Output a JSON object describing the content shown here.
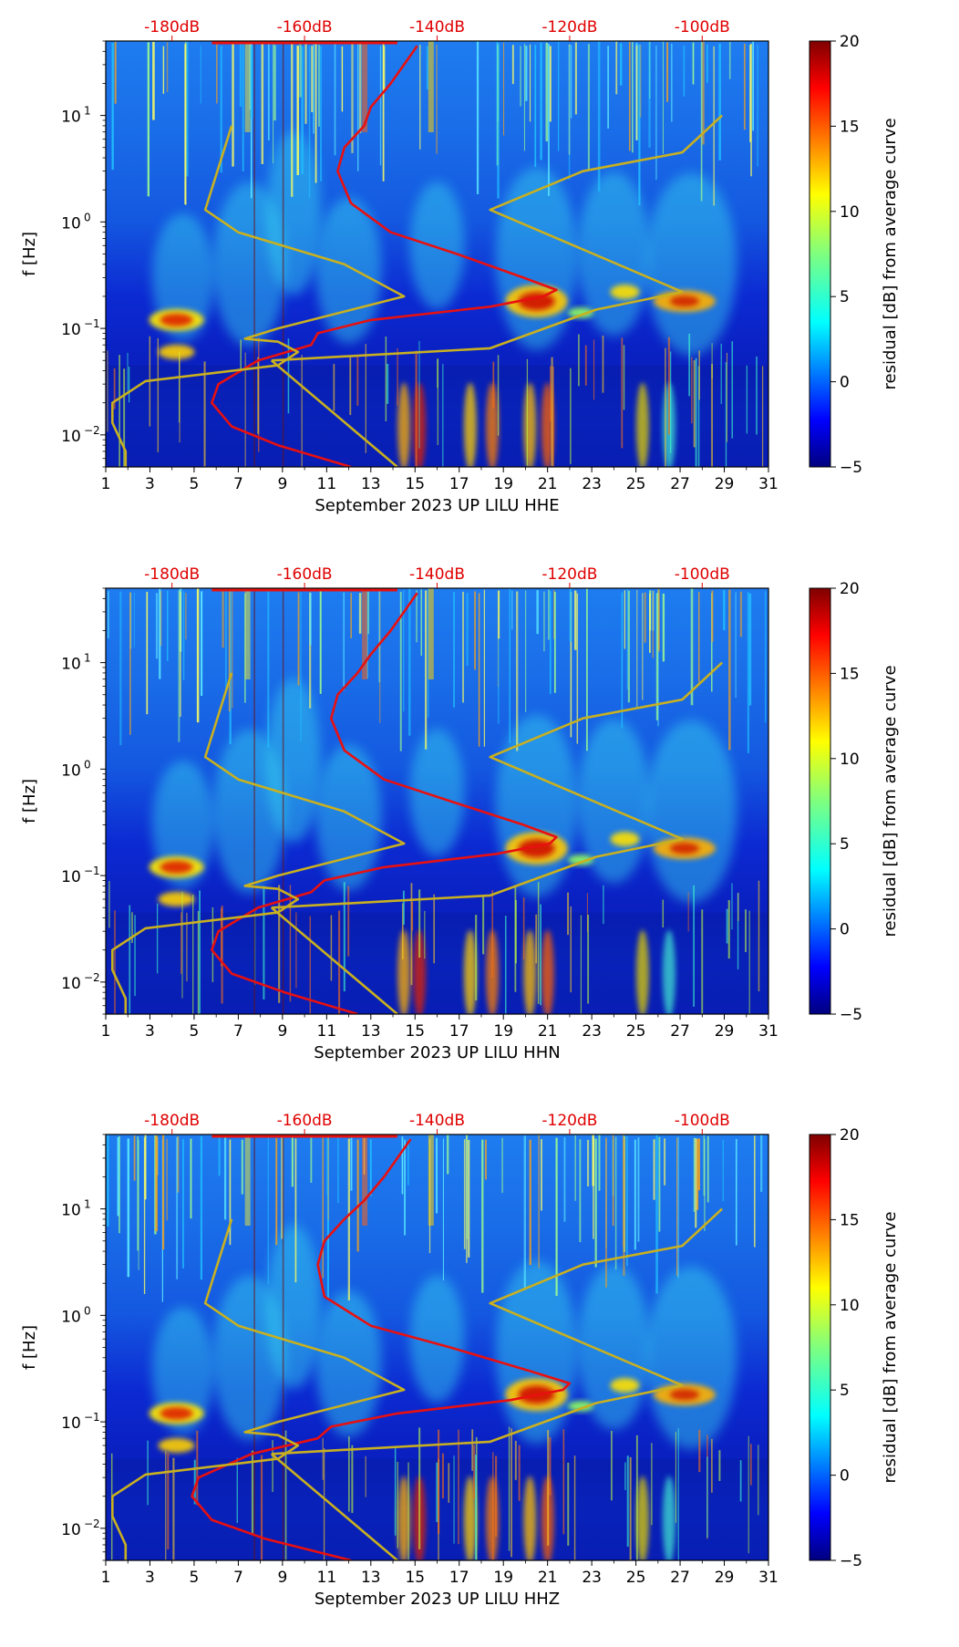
{
  "colors": {
    "red_curve": "#e81010",
    "yellow_curve": "#c8b020",
    "top_axis": "#e00000",
    "colormap": [
      "#00007f",
      "#0000ff",
      "#007fff",
      "#00ffff",
      "#7fff7f",
      "#ffff00",
      "#ff7f00",
      "#ff0000",
      "#7f0000"
    ]
  },
  "chart_data": [
    {
      "type": "heatmap",
      "title": "",
      "xlabel": "September 2023 UP LILU  HHE",
      "ylabel": "f [Hz]",
      "xlim": [
        1,
        31
      ],
      "ylim": [
        0.005,
        50
      ],
      "yscale": "log",
      "x_ticks": [
        "1",
        "3",
        "5",
        "7",
        "9",
        "11",
        "13",
        "15",
        "17",
        "19",
        "21",
        "23",
        "25",
        "27",
        "29",
        "31"
      ],
      "y_ticks": [
        {
          "label": "10",
          "exp": "−2",
          "value": 0.01
        },
        {
          "label": "10",
          "exp": "−1",
          "value": 0.1
        },
        {
          "label": "10",
          "exp": "0",
          "value": 1
        },
        {
          "label": "10",
          "exp": "1",
          "value": 10
        }
      ],
      "top_ticks": [
        "-180dB",
        "-160dB",
        "-140dB",
        "-120dB",
        "-100dB"
      ],
      "top_range_db": [
        -190,
        -90
      ],
      "colorbar": {
        "label": "residual [dB] from average curve",
        "range": [
          -5,
          20
        ],
        "ticks": [
          "−5",
          "0",
          "5",
          "10",
          "15",
          "20"
        ]
      },
      "red_curve": {
        "name": "mean PSD",
        "freq": [
          0.005,
          0.008,
          0.012,
          0.02,
          0.03,
          0.05,
          0.07,
          0.09,
          0.12,
          0.16,
          0.2,
          0.23,
          0.3,
          0.5,
          0.8,
          1.5,
          3,
          5,
          8,
          12,
          20,
          30,
          45
        ],
        "db": [
          -153,
          -164,
          -171,
          -174,
          -173,
          -167,
          -159,
          -158,
          -150,
          -132,
          -124,
          -122,
          -127,
          -137,
          -147,
          -153,
          -155,
          -154,
          -151,
          -150,
          -147,
          -145,
          -143
        ]
      },
      "yellow_curve": {
        "name": "noise models",
        "freq": [
          0.005,
          0.007,
          0.013,
          0.02,
          0.032,
          0.045,
          0.06,
          0.075,
          0.08,
          0.1,
          0.2,
          0.4,
          0.8,
          1.3,
          8,
          0.05,
          0.065,
          0.15,
          0.22,
          1.3,
          3,
          4.5,
          10
        ],
        "db": [
          -187,
          -187,
          -189,
          -189,
          -184,
          -164,
          -161,
          -164,
          -169,
          -164,
          -145,
          -154,
          -170,
          -175,
          -171,
          -165,
          -132,
          -116,
          -103,
          -132,
          -118,
          -103,
          -97
        ]
      }
    },
    {
      "type": "heatmap",
      "title": "",
      "xlabel": "September 2023 UP LILU  HHN",
      "ylabel": "f [Hz]",
      "xlim": [
        1,
        31
      ],
      "ylim": [
        0.005,
        50
      ],
      "yscale": "log",
      "x_ticks": [
        "1",
        "3",
        "5",
        "7",
        "9",
        "11",
        "13",
        "15",
        "17",
        "19",
        "21",
        "23",
        "25",
        "27",
        "29",
        "31"
      ],
      "y_ticks": [
        {
          "label": "10",
          "exp": "−2",
          "value": 0.01
        },
        {
          "label": "10",
          "exp": "−1",
          "value": 0.1
        },
        {
          "label": "10",
          "exp": "0",
          "value": 1
        },
        {
          "label": "10",
          "exp": "1",
          "value": 10
        }
      ],
      "top_ticks": [
        "-180dB",
        "-160dB",
        "-140dB",
        "-120dB",
        "-100dB"
      ],
      "top_range_db": [
        -190,
        -90
      ],
      "colorbar": {
        "label": "residual [dB] from average curve",
        "range": [
          -5,
          20
        ],
        "ticks": [
          "−5",
          "0",
          "5",
          "10",
          "15",
          "20"
        ]
      },
      "red_curve": {
        "name": "mean PSD",
        "freq": [
          0.005,
          0.008,
          0.012,
          0.02,
          0.03,
          0.05,
          0.07,
          0.09,
          0.12,
          0.16,
          0.2,
          0.23,
          0.3,
          0.5,
          0.8,
          1.5,
          3,
          5,
          8,
          12,
          20,
          30,
          45
        ],
        "db": [
          -152,
          -163,
          -171,
          -174,
          -173,
          -167,
          -159,
          -157,
          -148,
          -131,
          -123,
          -122,
          -127,
          -138,
          -148,
          -154,
          -156,
          -155,
          -152,
          -150,
          -147,
          -145,
          -143
        ]
      },
      "yellow_curve": {
        "name": "noise models",
        "freq": [
          0.005,
          0.007,
          0.013,
          0.02,
          0.032,
          0.045,
          0.06,
          0.075,
          0.08,
          0.1,
          0.2,
          0.4,
          0.8,
          1.3,
          8,
          0.05,
          0.065,
          0.15,
          0.22,
          1.3,
          3,
          4.5,
          10
        ],
        "db": [
          -187,
          -187,
          -189,
          -189,
          -184,
          -164,
          -161,
          -164,
          -169,
          -164,
          -145,
          -154,
          -170,
          -175,
          -171,
          -165,
          -132,
          -116,
          -103,
          -132,
          -118,
          -103,
          -97
        ]
      }
    },
    {
      "type": "heatmap",
      "title": "",
      "xlabel": "September 2023 UP LILU  HHZ",
      "ylabel": "f [Hz]",
      "xlim": [
        1,
        31
      ],
      "ylim": [
        0.005,
        50
      ],
      "yscale": "log",
      "x_ticks": [
        "1",
        "3",
        "5",
        "7",
        "9",
        "11",
        "13",
        "15",
        "17",
        "19",
        "21",
        "23",
        "25",
        "27",
        "29",
        "31"
      ],
      "y_ticks": [
        {
          "label": "10",
          "exp": "−2",
          "value": 0.01
        },
        {
          "label": "10",
          "exp": "−1",
          "value": 0.1
        },
        {
          "label": "10",
          "exp": "0",
          "value": 1
        },
        {
          "label": "10",
          "exp": "1",
          "value": 10
        }
      ],
      "top_ticks": [
        "-180dB",
        "-160dB",
        "-140dB",
        "-120dB",
        "-100dB"
      ],
      "top_range_db": [
        -190,
        -90
      ],
      "colorbar": {
        "label": "residual [dB] from average curve",
        "range": [
          -5,
          20
        ],
        "ticks": [
          "−5",
          "0",
          "5",
          "10",
          "15",
          "20"
        ]
      },
      "red_curve": {
        "name": "mean PSD",
        "freq": [
          0.005,
          0.008,
          0.012,
          0.02,
          0.03,
          0.05,
          0.07,
          0.09,
          0.12,
          0.16,
          0.2,
          0.23,
          0.3,
          0.5,
          0.8,
          1.5,
          3,
          5,
          8,
          12,
          20,
          30,
          45
        ],
        "db": [
          -153,
          -166,
          -174,
          -177,
          -176,
          -168,
          -158,
          -156,
          -146,
          -129,
          -121,
          -120,
          -126,
          -138,
          -150,
          -157,
          -158,
          -157,
          -154,
          -151,
          -148,
          -146,
          -144
        ]
      },
      "yellow_curve": {
        "name": "noise models",
        "freq": [
          0.005,
          0.007,
          0.013,
          0.02,
          0.032,
          0.045,
          0.06,
          0.075,
          0.08,
          0.1,
          0.2,
          0.4,
          0.8,
          1.3,
          8,
          0.05,
          0.065,
          0.15,
          0.22,
          1.3,
          3,
          4.5,
          10
        ],
        "db": [
          -187,
          -187,
          -189,
          -189,
          -184,
          -164,
          -161,
          -164,
          -169,
          -164,
          -145,
          -154,
          -170,
          -175,
          -171,
          -165,
          -132,
          -116,
          -103,
          -132,
          -118,
          -103,
          -97
        ]
      }
    }
  ]
}
